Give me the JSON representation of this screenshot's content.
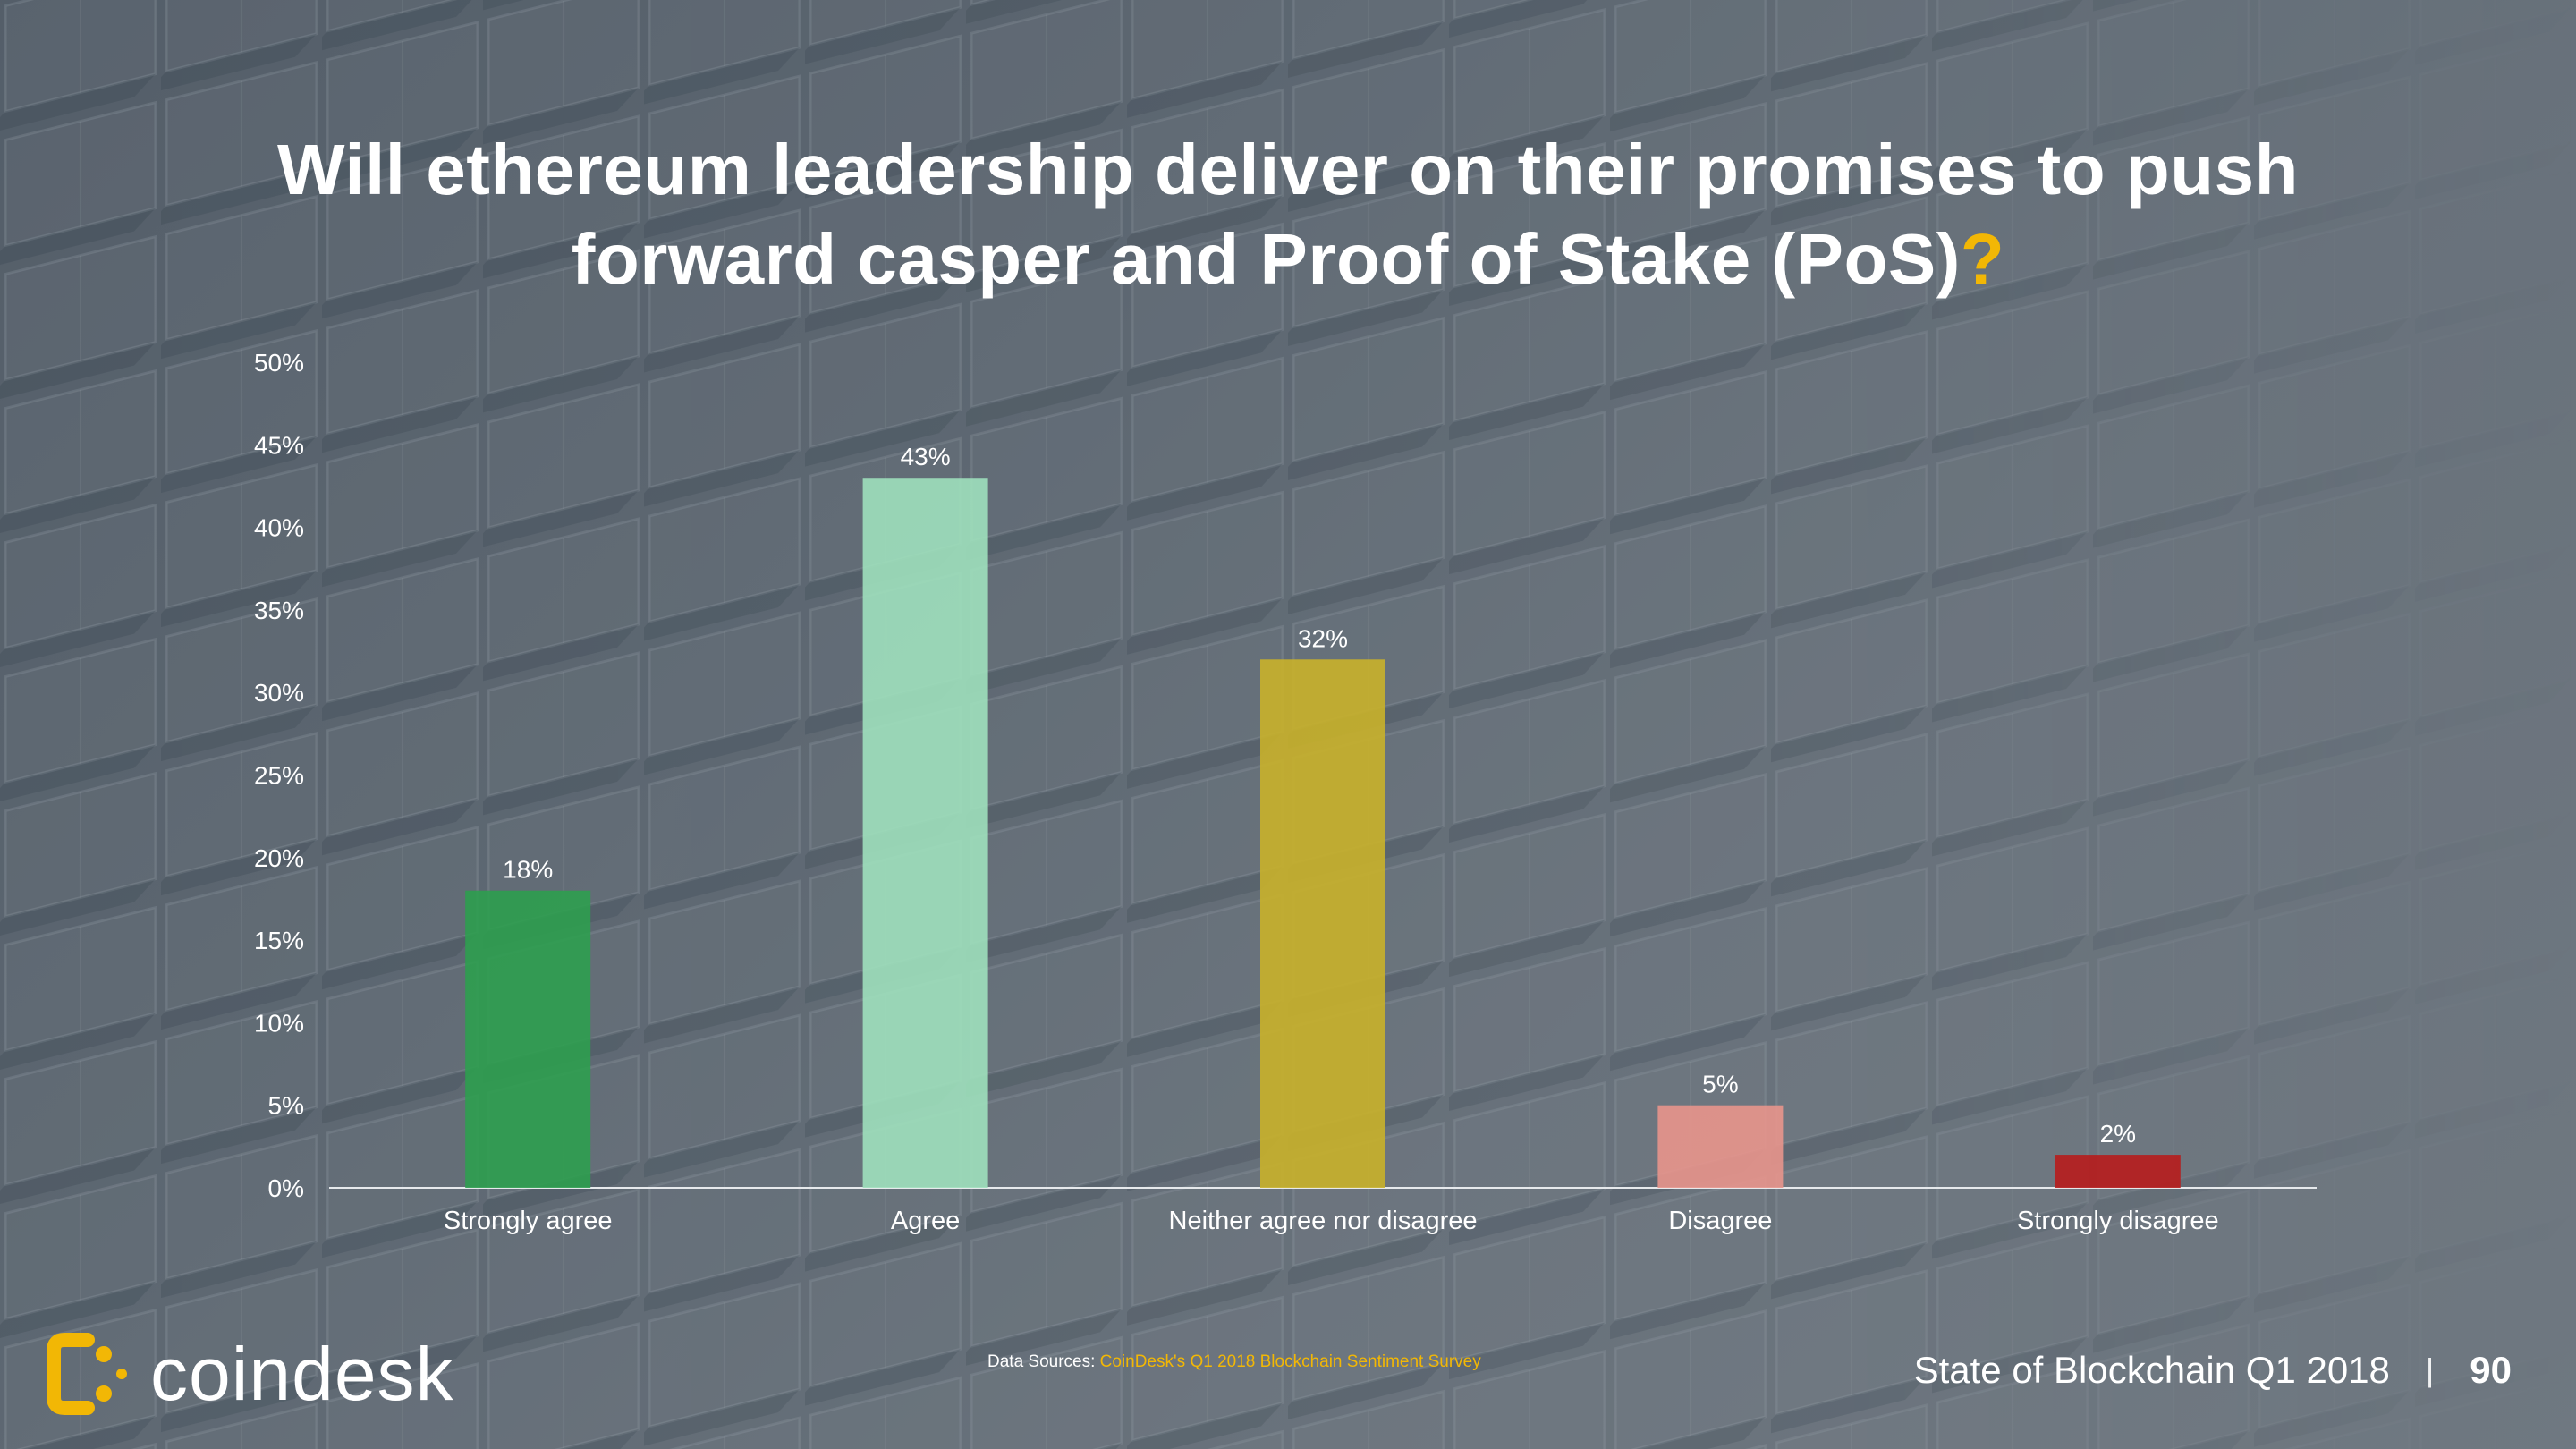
{
  "slide": {
    "title_main": "Will ethereum leadership deliver on their promises to push forward casper and Proof of Stake (PoS)",
    "title_accent": "?",
    "accent_color": "#f2b705"
  },
  "chart_data": {
    "type": "bar",
    "title": "Will ethereum leadership deliver on their promises to push forward casper and Proof of Stake (PoS)?",
    "categories": [
      "Strongly agree",
      "Agree",
      "Neither agree nor disagree",
      "Disagree",
      "Strongly disagree"
    ],
    "values": [
      18,
      43,
      32,
      5,
      2
    ],
    "value_labels": [
      "18%",
      "43%",
      "32%",
      "5%",
      "2%"
    ],
    "bar_colors": [
      "#2e9e4f",
      "#9ee0bd",
      "#c9b12a",
      "#e8958c",
      "#b71c1c"
    ],
    "y_ticks": [
      0,
      5,
      10,
      15,
      20,
      25,
      30,
      35,
      40,
      45,
      50
    ],
    "y_tick_labels": [
      "0%",
      "5%",
      "10%",
      "15%",
      "20%",
      "25%",
      "30%",
      "35%",
      "40%",
      "45%",
      "50%"
    ],
    "ylim": [
      0,
      50
    ],
    "xlabel": "",
    "ylabel": "",
    "grid": false,
    "legend": "none"
  },
  "footer": {
    "logo_icon": "coindesk-logo-icon",
    "logo_name": "coindesk",
    "source_prefix": "Data Sources: ",
    "source_link": "CoinDesk's Q1 2018 Blockchain Sentiment Survey",
    "report_name": "State of Blockchain Q1 2018",
    "separator": "|",
    "page_number": "90"
  }
}
